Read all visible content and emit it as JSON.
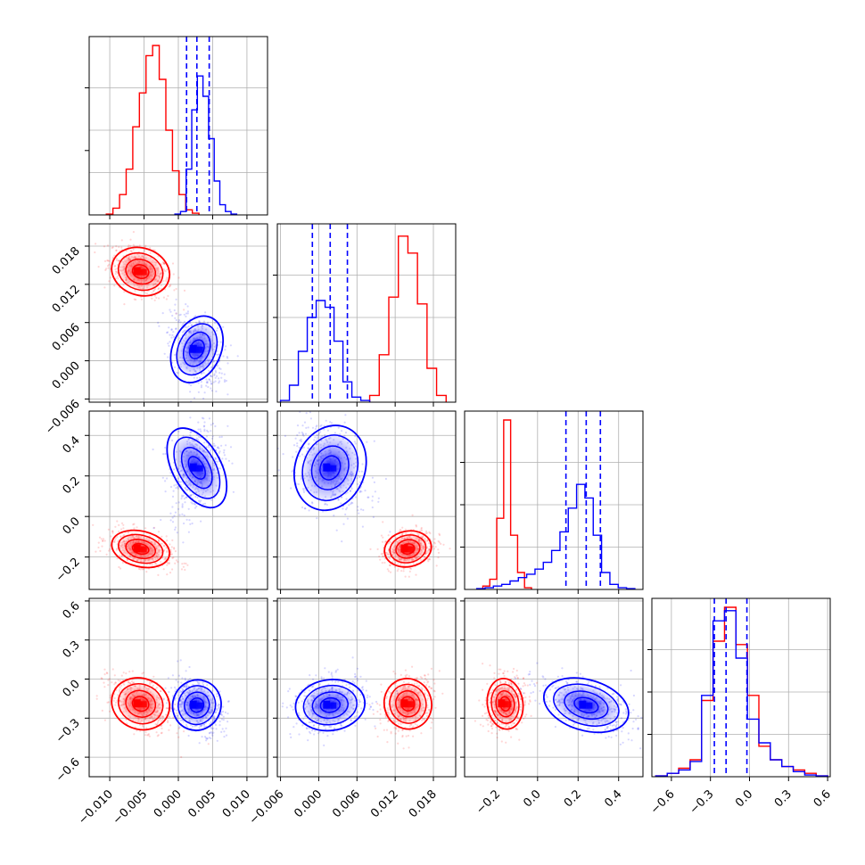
{
  "chart_data": {
    "type": "corner",
    "colors": {
      "series_a": "#ff0000",
      "series_b": "#0000ff",
      "grid": "#b0b0b0",
      "frame": "#000000",
      "quantile_line": "#0000ff"
    },
    "grid": true,
    "series": [
      {
        "color": "#ff0000",
        "mean": [
          -0.0055,
          0.014,
          -0.16,
          -0.19
        ],
        "std": [
          0.0022,
          0.0019,
          0.045,
          0.1
        ]
      },
      {
        "color": "#0000ff",
        "mean": [
          0.0027,
          0.0018,
          0.24,
          -0.2
        ],
        "std": [
          0.0018,
          0.0028,
          0.11,
          0.1
        ]
      }
    ],
    "quantile_lines": [
      [
        0.0012,
        0.0027,
        0.0045
      ],
      [
        -0.001,
        0.0018,
        0.0045
      ],
      [
        0.14,
        0.24,
        0.31
      ],
      [
        -0.27,
        -0.18,
        -0.02
      ]
    ],
    "axes": [
      {
        "range": [
          -0.013,
          0.013
        ],
        "ticks": [
          -0.01,
          -0.005,
          0.0,
          0.005,
          0.01
        ],
        "tick_labels": [
          "−0.010",
          "−0.005",
          "0.000",
          "0.005",
          "0.010"
        ]
      },
      {
        "range": [
          -0.0065,
          0.0215
        ],
        "ticks": [
          -0.006,
          0.0,
          0.006,
          0.012,
          0.018
        ],
        "tick_labels": [
          "−0.006",
          "0.000",
          "0.006",
          "0.012",
          "0.018"
        ]
      },
      {
        "range": [
          -0.36,
          0.52
        ],
        "ticks": [
          -0.2,
          0.0,
          0.2,
          0.4
        ],
        "tick_labels": [
          "−0.2",
          "0.0",
          "0.2",
          "0.4"
        ]
      },
      {
        "range": [
          -0.75,
          0.62
        ],
        "ticks": [
          -0.6,
          -0.3,
          0.0,
          0.3,
          0.6
        ],
        "tick_labels": [
          "−0.6",
          "−0.3",
          "0.0",
          "0.3",
          "0.6"
        ]
      }
    ],
    "row_tick_labels": {
      "1": {
        "ticks": [
          -0.006,
          0.0,
          0.006,
          0.012,
          0.018
        ],
        "tick_labels": [
          "−0.006",
          "0.000",
          "0.006",
          "0.012",
          "0.018"
        ]
      },
      "2": {
        "ticks": [
          -0.2,
          0.0,
          0.2,
          0.4
        ],
        "tick_labels": [
          "−0.2",
          "0.0",
          "0.2",
          "0.4"
        ]
      },
      "3": {
        "ticks": [
          -0.6,
          -0.3,
          0.0,
          0.3,
          0.6
        ],
        "tick_labels": [
          "−0.6",
          "−0.3",
          "0.0",
          "0.3",
          "0.6"
        ]
      }
    },
    "histograms": [
      {
        "series_a": [
          0.005,
          0.04,
          0.12,
          0.27,
          0.52,
          0.72,
          0.94,
          1.0,
          0.8,
          0.5,
          0.26,
          0.12,
          0.03,
          0.01
        ],
        "series_b": [
          0.005,
          0.02,
          0.27,
          0.62,
          0.82,
          0.7,
          0.45,
          0.2,
          0.06,
          0.02,
          0.005
        ],
        "series_a_range": [
          -0.0105,
          0.003
        ],
        "series_b_range": [
          -0.0005,
          0.0085
        ]
      },
      {
        "series_a": [
          0.04,
          0.28,
          0.62,
          0.98,
          0.88,
          0.58,
          0.2,
          0.04
        ],
        "series_b": [
          0.01,
          0.1,
          0.3,
          0.5,
          0.6,
          0.56,
          0.36,
          0.12,
          0.03,
          0.01
        ],
        "series_a_range": [
          0.008,
          0.02
        ],
        "series_b_range": [
          -0.006,
          0.008
        ]
      },
      {
        "series_a": [
          0.02,
          0.06,
          0.42,
          1.0,
          0.32,
          0.1,
          0.01
        ],
        "series_b": [
          0.005,
          0.01,
          0.02,
          0.03,
          0.05,
          0.07,
          0.09,
          0.12,
          0.16,
          0.23,
          0.34,
          0.48,
          0.62,
          0.54,
          0.32,
          0.1,
          0.03,
          0.01,
          0.005
        ],
        "series_a_range": [
          -0.27,
          -0.03
        ],
        "series_b_range": [
          -0.3,
          0.48
        ]
      },
      {
        "series_a": [
          0.005,
          0.02,
          0.05,
          0.1,
          0.45,
          0.8,
          1.0,
          0.78,
          0.48,
          0.18,
          0.1,
          0.06,
          0.04,
          0.02,
          0.005
        ],
        "series_b": [
          0.005,
          0.02,
          0.04,
          0.09,
          0.48,
          0.92,
          0.98,
          0.7,
          0.34,
          0.2,
          0.1,
          0.06,
          0.03,
          0.01,
          0.005
        ],
        "series_a_range": [
          -0.72,
          0.6
        ],
        "series_b_range": [
          -0.72,
          0.6
        ]
      }
    ]
  }
}
